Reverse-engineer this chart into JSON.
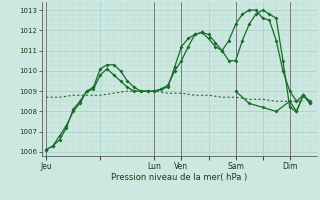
{
  "xlabel": "Pression niveau de la mer( hPa )",
  "bg_color": "#cce8e0",
  "grid_color_major": "#aad4cc",
  "grid_color_minor": "#bbddd6",
  "line_color": "#1a6b2a",
  "ylim": [
    1005.8,
    1013.4
  ],
  "yticks": [
    1006,
    1007,
    1008,
    1009,
    1010,
    1011,
    1012,
    1013
  ],
  "day_labels": [
    "Jeu",
    "",
    "Lun",
    "Ven",
    "",
    "Sam",
    "",
    "Dim"
  ],
  "day_positions": [
    0,
    24,
    48,
    60,
    72,
    84,
    96,
    108
  ],
  "vline_positions": [
    0,
    48,
    60,
    84,
    108
  ],
  "series1": {
    "x": [
      0,
      3,
      6,
      9,
      12,
      15,
      18,
      21,
      24,
      27,
      30,
      33,
      36,
      39,
      42,
      45,
      48,
      51,
      54,
      57,
      60,
      63,
      66,
      69,
      72,
      75,
      78,
      81,
      84,
      87,
      90,
      93,
      96,
      99,
      102,
      105,
      108,
      111,
      114,
      117
    ],
    "y": [
      1006.1,
      1006.3,
      1006.6,
      1007.2,
      1008.1,
      1008.5,
      1009.0,
      1009.2,
      1010.1,
      1010.3,
      1010.3,
      1010.0,
      1009.5,
      1009.2,
      1009.0,
      1009.0,
      1009.0,
      1009.1,
      1009.2,
      1010.2,
      1011.2,
      1011.6,
      1011.8,
      1011.9,
      1011.8,
      1011.4,
      1011.0,
      1011.5,
      1012.3,
      1012.8,
      1013.0,
      1013.0,
      1012.6,
      1012.5,
      1011.5,
      1010.0,
      1009.0,
      1008.5,
      1008.8,
      1008.5
    ]
  },
  "series2": {
    "x": [
      0,
      3,
      6,
      9,
      12,
      15,
      18,
      21,
      24,
      27,
      30,
      33,
      36,
      39,
      42,
      45,
      48,
      51,
      54,
      57,
      60,
      63,
      66,
      69,
      72,
      75,
      78,
      81,
      84,
      87,
      90,
      93,
      96,
      99,
      102,
      105,
      108,
      111,
      114,
      117
    ],
    "y": [
      1006.1,
      1006.3,
      1006.8,
      1007.3,
      1008.0,
      1008.4,
      1009.0,
      1009.1,
      1009.8,
      1010.1,
      1009.8,
      1009.5,
      1009.2,
      1009.0,
      1009.0,
      1009.0,
      1009.0,
      1009.1,
      1009.3,
      1010.0,
      1010.5,
      1011.2,
      1011.8,
      1011.9,
      1011.6,
      1011.2,
      1011.0,
      1010.5,
      1010.5,
      1011.5,
      1012.3,
      1012.8,
      1013.0,
      1012.8,
      1012.6,
      1010.5,
      1008.2,
      1008.0,
      1008.8,
      1008.4
    ]
  },
  "series3": {
    "x": [
      0,
      6,
      12,
      18,
      24,
      30,
      36,
      42,
      48,
      54,
      60,
      66,
      72,
      78,
      84,
      90,
      96,
      102,
      108,
      114
    ],
    "y": [
      1008.7,
      1008.7,
      1008.8,
      1008.8,
      1008.8,
      1008.9,
      1009.0,
      1009.0,
      1009.0,
      1008.9,
      1008.9,
      1008.8,
      1008.8,
      1008.7,
      1008.7,
      1008.6,
      1008.6,
      1008.5,
      1008.5,
      1008.5
    ]
  },
  "series4": {
    "x": [
      84,
      90,
      96,
      102,
      108,
      111,
      114,
      117
    ],
    "y": [
      1009.0,
      1008.4,
      1008.2,
      1008.0,
      1008.5,
      1008.0,
      1008.8,
      1008.4
    ]
  }
}
